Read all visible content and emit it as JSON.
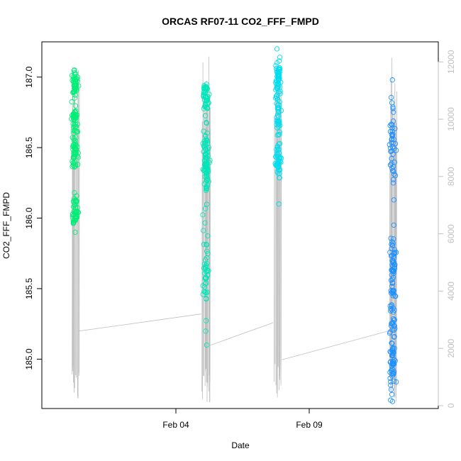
{
  "chart_data": {
    "type": "scatter",
    "title": "ORCAS RF07-11 CO2_FFF_FMPD",
    "xlabel": "Date",
    "ylabel": "CO2_FFF_FMPD",
    "x_ticks": [
      "Feb 04",
      "Feb 09"
    ],
    "y_ticks": [
      "185.0",
      "185.5",
      "186.0",
      "186.5",
      "187.0"
    ],
    "y2_ticks": [
      "0",
      "2000",
      "4000",
      "6000",
      "8000",
      "10000",
      "12000"
    ],
    "ylim": [
      184.65,
      187.25
    ],
    "y2lim": [
      -100,
      12700
    ],
    "grid": false,
    "legend": "none",
    "colors": {
      "flight1": "#00ee76",
      "flight2": "#00e6b8",
      "flight3": "#00ddee",
      "flight4": "#1e90ff",
      "altitude": "#bebebe"
    },
    "series": [
      {
        "date": "Jan 31",
        "y_range": [
          185.9,
          187.05
        ],
        "clusters": [
          [
            186.45,
            0.1
          ],
          [
            186.7,
            0.12
          ],
          [
            186.95,
            0.08
          ],
          [
            186.05,
            0.12
          ]
        ]
      },
      {
        "date": "Feb 05",
        "y_range": [
          185.1,
          186.95
        ],
        "clusters": [
          [
            186.3,
            0.1
          ],
          [
            186.85,
            0.1
          ],
          [
            185.6,
            0.35
          ],
          [
            186.5,
            0.15
          ]
        ]
      },
      {
        "date": "Feb 08",
        "y_range": [
          186.1,
          187.2
        ],
        "clusters": [
          [
            186.75,
            0.25
          ],
          [
            187.0,
            0.12
          ],
          [
            186.4,
            0.1
          ]
        ]
      },
      {
        "date": "Feb 12",
        "y_range": [
          184.7,
          186.98
        ],
        "clusters": [
          [
            184.95,
            0.15
          ],
          [
            186.55,
            0.3
          ],
          [
            185.65,
            0.3
          ],
          [
            185.3,
            0.3
          ]
        ]
      }
    ]
  }
}
